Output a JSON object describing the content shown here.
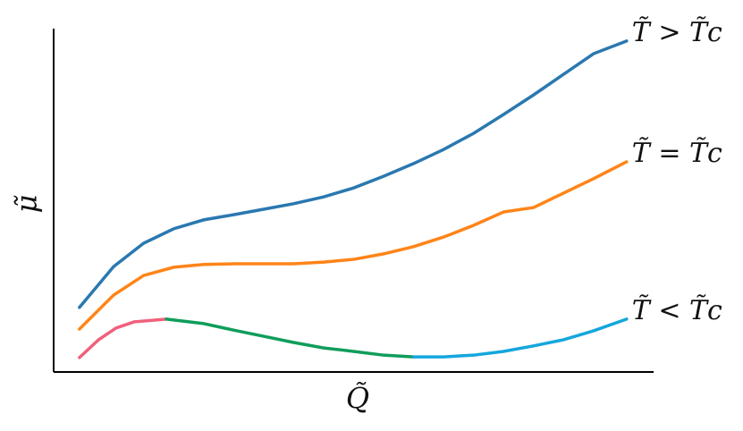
{
  "chart_data": {
    "type": "line",
    "xlabel": "Q̃",
    "ylabel": "μ̃",
    "xlim": [
      0,
      10
    ],
    "ylim": [
      0,
      10
    ],
    "series": [
      {
        "name": "T̃ > T̃c",
        "color": "#2a78b0",
        "x": [
          0.43,
          1,
          1.5,
          2,
          2.5,
          3,
          3.5,
          4,
          4.5,
          5,
          5.5,
          6,
          6.5,
          7,
          7.5,
          8,
          8.5,
          9,
          9.55
        ],
        "values": [
          1.88,
          3.07,
          3.75,
          4.17,
          4.43,
          4.58,
          4.74,
          4.9,
          5.1,
          5.36,
          5.7,
          6.07,
          6.48,
          6.95,
          7.5,
          8.07,
          8.67,
          9.27,
          9.64
        ]
      },
      {
        "name": "T̃ = T̃c",
        "color": "#ff8418",
        "x": [
          0.43,
          1,
          1.5,
          2,
          2.5,
          3,
          3.5,
          4,
          4.5,
          5,
          5.5,
          6,
          6.5,
          7,
          7.5,
          8,
          8.5,
          9,
          9.55
        ],
        "values": [
          1.25,
          2.24,
          2.81,
          3.05,
          3.13,
          3.15,
          3.15,
          3.15,
          3.2,
          3.28,
          3.44,
          3.65,
          3.93,
          4.27,
          4.66,
          4.79,
          5.21,
          5.63,
          6.12
        ]
      },
      {
        "color": "#f0607a",
        "x": [
          0.43,
          0.75,
          1.04,
          1.34,
          1.88
        ],
        "values": [
          0.42,
          0.94,
          1.28,
          1.46,
          1.54
        ]
      },
      {
        "color": "#0f9d5a",
        "x": [
          1.88,
          2.5,
          3,
          3.5,
          4,
          4.5,
          5,
          5.5,
          6
        ],
        "values": [
          1.54,
          1.41,
          1.22,
          1.04,
          0.86,
          0.7,
          0.6,
          0.49,
          0.44
        ]
      },
      {
        "name": "T̃ < T̃c",
        "color": "#14a6dd",
        "x": [
          6,
          6.5,
          7,
          7.5,
          8,
          8.5,
          9,
          9.55
        ],
        "values": [
          0.44,
          0.44,
          0.49,
          0.6,
          0.76,
          0.94,
          1.2,
          1.54
        ]
      }
    ]
  }
}
